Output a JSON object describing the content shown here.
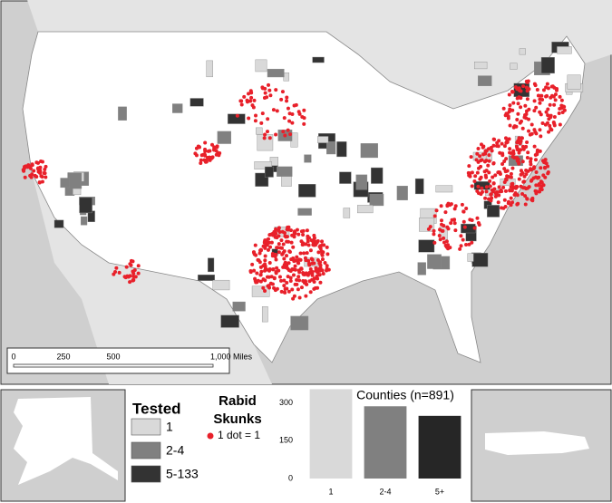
{
  "map": {
    "scale_bar": {
      "labels": [
        "0",
        "250",
        "500",
        "1,000 Miles"
      ]
    }
  },
  "legend": {
    "tested": {
      "title": "Tested",
      "items": [
        {
          "label": "1",
          "color": "#d9d9d9"
        },
        {
          "label": "2-4",
          "color": "#808080"
        },
        {
          "label": "5-133",
          "color": "#333333"
        }
      ]
    },
    "rabid": {
      "title_lines": [
        "Rabid",
        "Skunks"
      ],
      "dot_label": "1 dot = 1",
      "dot_color": "#e8202a"
    }
  },
  "chart_data": {
    "type": "bar",
    "title": "Counties (n=891)",
    "categories": [
      "1",
      "2-4",
      "5+"
    ],
    "values": [
      355,
      287,
      249
    ],
    "colors": [
      "#d9d9d9",
      "#808080",
      "#262626"
    ],
    "ylim": [
      0,
      360
    ],
    "yticks": [
      0,
      150,
      300
    ],
    "grid": false
  }
}
